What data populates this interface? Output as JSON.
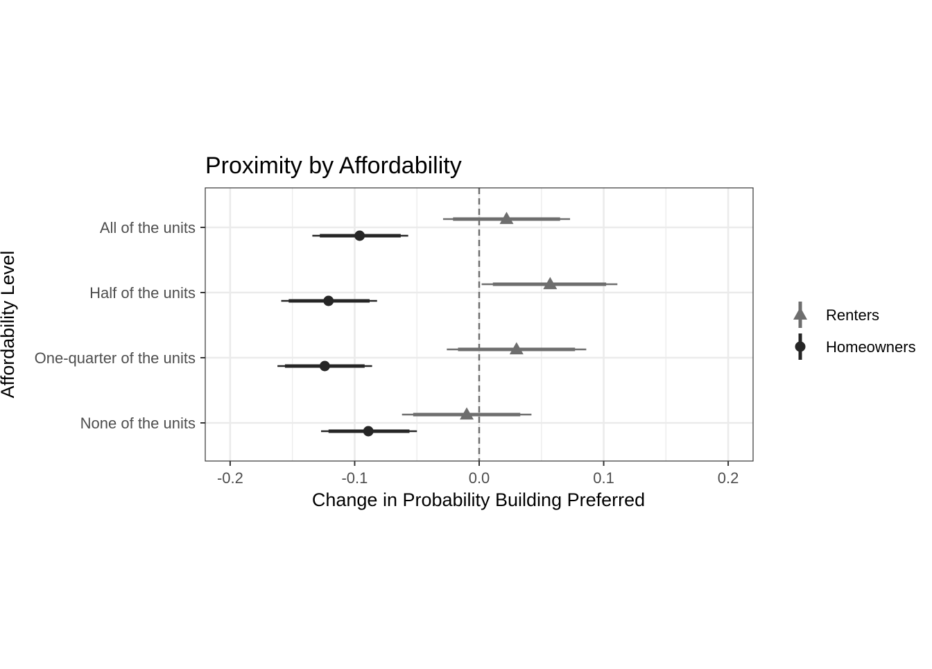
{
  "chart_data": {
    "type": "scatter",
    "title": "Proximity by Affordability",
    "xlabel": "Change in Probability Building Preferred",
    "ylabel": "Affordability Level",
    "xlim": [
      -0.22,
      0.22
    ],
    "x_ticks": [
      -0.2,
      -0.1,
      0.0,
      0.1,
      0.2
    ],
    "x_tick_labels": [
      "-0.2",
      "-0.1",
      "0.0",
      "0.1",
      "0.2"
    ],
    "categories": [
      "All of the units",
      "Half of the units",
      "One-quarter of the units",
      "None of the units"
    ],
    "reference_line": {
      "x": 0.0,
      "style": "dashed"
    },
    "grid": true,
    "legend_position": "right",
    "series": [
      {
        "name": "Renters",
        "marker": "triangle",
        "color": "#6e6e6e",
        "points": [
          {
            "category": "All of the units",
            "estimate": 0.022,
            "ci90": [
              -0.021,
              0.065
            ],
            "ci95": [
              -0.029,
              0.073
            ]
          },
          {
            "category": "Half of the units",
            "estimate": 0.057,
            "ci90": [
              0.011,
              0.102
            ],
            "ci95": [
              0.002,
              0.111
            ]
          },
          {
            "category": "One-quarter of the units",
            "estimate": 0.03,
            "ci90": [
              -0.017,
              0.077
            ],
            "ci95": [
              -0.026,
              0.086
            ]
          },
          {
            "category": "None of the units",
            "estimate": -0.01,
            "ci90": [
              -0.053,
              0.033
            ],
            "ci95": [
              -0.062,
              0.042
            ]
          }
        ]
      },
      {
        "name": "Homeowners",
        "marker": "circle",
        "color": "#262626",
        "points": [
          {
            "category": "All of the units",
            "estimate": -0.096,
            "ci90": [
              -0.128,
              -0.063
            ],
            "ci95": [
              -0.134,
              -0.057
            ]
          },
          {
            "category": "Half of the units",
            "estimate": -0.121,
            "ci90": [
              -0.153,
              -0.088
            ],
            "ci95": [
              -0.159,
              -0.082
            ]
          },
          {
            "category": "One-quarter of the units",
            "estimate": -0.124,
            "ci90": [
              -0.156,
              -0.092
            ],
            "ci95": [
              -0.162,
              -0.086
            ]
          },
          {
            "category": "None of the units",
            "estimate": -0.089,
            "ci90": [
              -0.121,
              -0.056
            ],
            "ci95": [
              -0.127,
              -0.05
            ]
          }
        ]
      }
    ]
  }
}
